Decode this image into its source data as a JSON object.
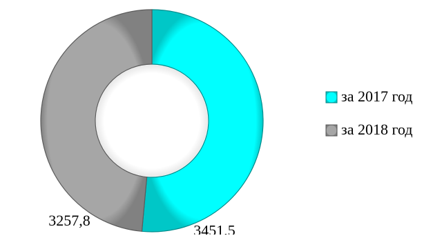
{
  "chart_data": {
    "type": "pie",
    "title": "",
    "series": [
      {
        "name": "за 2017 год",
        "value": 3451.5,
        "label": "3451,5",
        "color": "#00ffff"
      },
      {
        "name": "за 2018 год",
        "value": 3257.8,
        "label": "3257,8",
        "color": "#a6a6a6"
      }
    ],
    "legend_position": "right"
  }
}
